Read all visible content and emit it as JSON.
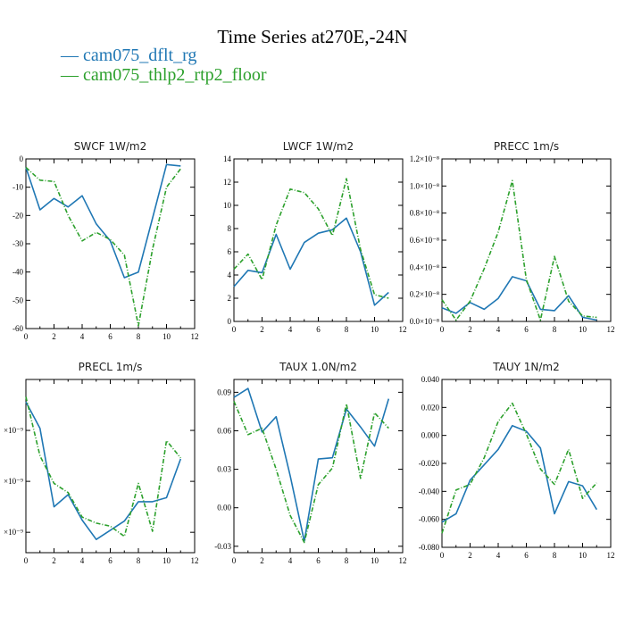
{
  "header": {
    "title": "Time Series at270E,-24N",
    "legend": [
      {
        "text": "— cam075_dflt_rg",
        "color": "#1f77b4"
      },
      {
        "text": "— cam075_thlp2_rtp2_floor",
        "color": "#2ca02c"
      }
    ]
  },
  "colors": {
    "series1": "#1f77b4",
    "series2": "#2ca02c"
  },
  "chart_data": [
    {
      "type": "line",
      "title": "SWCF   1W/m2",
      "xlim": [
        0,
        12
      ],
      "ylim": [
        -60,
        0
      ],
      "xticks": [
        0,
        2,
        4,
        6,
        8,
        10,
        12
      ],
      "xtick_labels": [
        "0",
        "2",
        "4",
        "6",
        "8",
        "10",
        "12"
      ],
      "yticks": [
        0,
        -10,
        -20,
        -30,
        -40,
        -50,
        -60
      ],
      "ytick_labels": [
        "0",
        "-10",
        "-20",
        "-30",
        "-40",
        "-50",
        "-60"
      ],
      "x": [
        0,
        1,
        2,
        3,
        4,
        5,
        6,
        7,
        8,
        9,
        10,
        11
      ],
      "series": [
        {
          "values": [
            -3,
            -18,
            -14,
            -17,
            -13,
            -23,
            -29,
            -42,
            -40,
            -21,
            -2,
            -2.5
          ]
        },
        {
          "values": [
            -3,
            -7.5,
            -8,
            -20,
            -29,
            -26,
            -28.5,
            -34,
            -59,
            -32,
            -10,
            -3.5
          ]
        }
      ]
    },
    {
      "type": "line",
      "title": "LWCF   1W/m2",
      "xlim": [
        0,
        12
      ],
      "ylim": [
        0,
        14
      ],
      "xticks": [
        0,
        2,
        4,
        6,
        8,
        10,
        12
      ],
      "xtick_labels": [
        "0",
        "2",
        "4",
        "6",
        "8",
        "10",
        "12"
      ],
      "yticks": [
        0,
        2,
        4,
        6,
        8,
        10,
        12,
        14
      ],
      "ytick_labels": [
        "0",
        "2",
        "4",
        "6",
        "8",
        "10",
        "12",
        "14"
      ],
      "x": [
        0,
        1,
        2,
        3,
        4,
        5,
        6,
        7,
        8,
        9,
        10,
        11
      ],
      "series": [
        {
          "values": [
            3.0,
            4.4,
            4.2,
            7.5,
            4.5,
            6.8,
            7.6,
            7.9,
            8.9,
            6.0,
            1.4,
            2.5
          ]
        },
        {
          "values": [
            4.5,
            5.8,
            3.6,
            8.3,
            11.4,
            11.1,
            9.7,
            7.4,
            12.3,
            6.2,
            2.3,
            2.0
          ]
        }
      ]
    },
    {
      "type": "line",
      "title": "PRECC   1m/s",
      "xlim": [
        0,
        12
      ],
      "ylim": [
        0,
        1.2e-08
      ],
      "xticks": [
        0,
        2,
        4,
        6,
        8,
        10,
        12
      ],
      "xtick_labels": [
        "0",
        "2",
        "4",
        "6",
        "8",
        "10",
        "12"
      ],
      "yticks": [
        0,
        2e-09,
        4e-09,
        6e-09,
        8e-09,
        1e-08,
        1.2e-08
      ],
      "ytick_labels": [
        "0.0×10⁻⁸",
        "0.2×10⁻⁸",
        "0.4×10⁻⁸",
        "0.6×10⁻⁸",
        "0.8×10⁻⁸",
        "1.0×10⁻⁸",
        "1.2×10⁻⁸"
      ],
      "x": [
        0,
        1,
        2,
        3,
        4,
        5,
        6,
        7,
        8,
        9,
        10,
        11
      ],
      "series": [
        {
          "values": [
            1e-09,
            6e-10,
            1.4e-09,
            9e-10,
            1.7e-09,
            3.3e-09,
            3e-09,
            9e-10,
            8e-10,
            1.9e-09,
            3e-10,
            1e-10
          ]
        },
        {
          "values": [
            1.6e-09,
            1e-10,
            1.5e-09,
            3.9e-09,
            6.6e-09,
            1.04e-08,
            3.1e-09,
            1e-10,
            4.8e-09,
            1.5e-09,
            4e-10,
            3e-10
          ]
        }
      ]
    },
    {
      "type": "line",
      "title": "PRECL   1m/s",
      "xlim": [
        0,
        12
      ],
      "ylim": [
        0.3,
        2.0
      ],
      "xticks": [
        0,
        2,
        4,
        6,
        8,
        10,
        12
      ],
      "xtick_labels": [
        "0",
        "2",
        "4",
        "6",
        "8",
        "10",
        "12"
      ],
      "yticks": [
        0.5,
        1.0,
        1.5
      ],
      "ytick_labels": [
        "×10⁻⁹",
        "×10⁻⁹",
        "×10⁻⁹"
      ],
      "x": [
        0,
        1,
        2,
        3,
        4,
        5,
        6,
        7,
        8,
        9,
        10,
        11
      ],
      "series": [
        {
          "values": [
            1.78,
            1.52,
            0.75,
            0.87,
            0.62,
            0.43,
            0.52,
            0.61,
            0.8,
            0.8,
            0.84,
            1.22
          ]
        },
        {
          "values": [
            1.83,
            1.25,
            0.98,
            0.89,
            0.65,
            0.59,
            0.56,
            0.46,
            0.98,
            0.51,
            1.4,
            1.23
          ]
        }
      ]
    },
    {
      "type": "line",
      "title": "TAUX   1.0N/m2",
      "xlim": [
        0,
        12
      ],
      "ylim": [
        -0.035,
        0.1
      ],
      "xticks": [
        0,
        2,
        4,
        6,
        8,
        10,
        12
      ],
      "xtick_labels": [
        "0",
        "2",
        "4",
        "6",
        "8",
        "10",
        "12"
      ],
      "yticks": [
        -0.03,
        0,
        0.03,
        0.06,
        0.09
      ],
      "ytick_labels": [
        "-0.03",
        "0.00",
        "0.03",
        "0.06",
        "0.09"
      ],
      "x": [
        0,
        1,
        2,
        3,
        4,
        5,
        6,
        7,
        8,
        9,
        10,
        11
      ],
      "series": [
        {
          "values": [
            0.086,
            0.093,
            0.059,
            0.071,
            0.025,
            -0.026,
            0.038,
            0.039,
            0.077,
            0.063,
            0.048,
            0.085
          ]
        },
        {
          "values": [
            0.083,
            0.057,
            0.062,
            0.03,
            -0.006,
            -0.027,
            0.018,
            0.031,
            0.081,
            0.023,
            0.074,
            0.062
          ]
        }
      ]
    },
    {
      "type": "line",
      "title": "TAUY   1N/m2",
      "xlim": [
        0,
        12
      ],
      "ylim": [
        -0.08,
        0.04
      ],
      "xticks": [
        0,
        2,
        4,
        6,
        8,
        10,
        12
      ],
      "xtick_labels": [
        "0",
        "2",
        "4",
        "6",
        "8",
        "10",
        "12"
      ],
      "yticks": [
        0.04,
        0.02,
        0,
        -0.02,
        -0.04,
        -0.06,
        -0.08
      ],
      "ytick_labels": [
        "0.040",
        "0.020",
        "0.000",
        "-0.020",
        "-0.040",
        "-0.060",
        "-0.080"
      ],
      "x": [
        0,
        1,
        2,
        3,
        4,
        5,
        6,
        7,
        8,
        9,
        10,
        11
      ],
      "series": [
        {
          "values": [
            -0.062,
            -0.056,
            -0.032,
            -0.021,
            -0.01,
            0.007,
            0.003,
            -0.009,
            -0.056,
            -0.033,
            -0.036,
            -0.053
          ]
        },
        {
          "values": [
            -0.07,
            -0.039,
            -0.035,
            -0.016,
            0.01,
            0.023,
            0.001,
            -0.024,
            -0.035,
            -0.01,
            -0.045,
            -0.034
          ]
        }
      ]
    }
  ]
}
